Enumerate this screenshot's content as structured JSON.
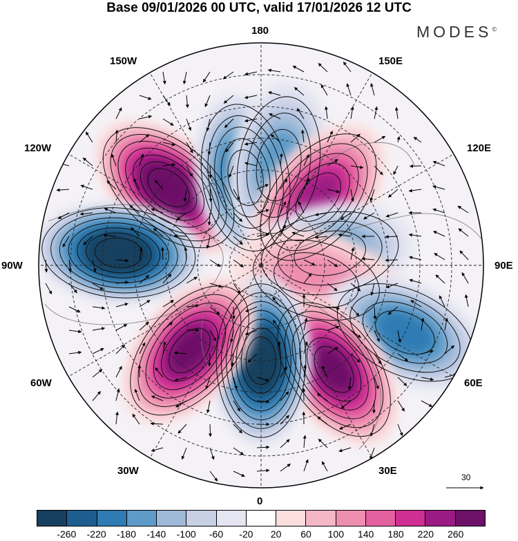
{
  "title": "Base 09/01/2026 00 UTC, valid 17/01/2026 12 UTC",
  "brand": "MODES",
  "brand_mark": "©",
  "longitude_labels": {
    "top": "180",
    "top_left": "150W",
    "top_right": "150E",
    "upper_left": "120W",
    "upper_right": "120E",
    "left": "90W",
    "right": "90E",
    "lower_left": "60W",
    "lower_right": "60E",
    "bottom_left": "30W",
    "bottom_right": "30E",
    "bottom": "0"
  },
  "vector_reference": "30",
  "colors": {
    "neg_260": "#173f5f",
    "neg_220": "#1d5e8f",
    "neg_180": "#2e7cb3",
    "neg_140": "#5f9bc8",
    "neg_100": "#9fb9d9",
    "neg_60": "#c8d0e6",
    "neg_20": "#e6e6f2",
    "zero": "#ffffff",
    "pos_20": "#fbdede",
    "pos_60": "#f4b7c6",
    "pos_100": "#ee8fb0",
    "pos_140": "#e461a0",
    "pos_180": "#cf2e93",
    "pos_220": "#9c1a83",
    "pos_260": "#6d1168"
  },
  "colorbar": {
    "swatches": [
      "#173f5f",
      "#1d5e8f",
      "#2e7cb3",
      "#5f9bc8",
      "#9fb9d9",
      "#c8d0e6",
      "#e6e6f2",
      "#ffffff",
      "#fbdede",
      "#f4b7c6",
      "#ee8fb0",
      "#e461a0",
      "#cf2e93",
      "#9c1a83",
      "#6d1168"
    ],
    "tick_labels": [
      "-260",
      "-220",
      "-180",
      "-140",
      "-100",
      "-60",
      "-20",
      "20",
      "60",
      "100",
      "140",
      "180",
      "220",
      "260"
    ]
  },
  "anomaly_features": [
    {
      "name": "north-pacific-ridge",
      "sign": "positive",
      "peak": 260,
      "lon": -130,
      "colat": 38
    },
    {
      "name": "canada-trough",
      "sign": "negative",
      "peak": -260,
      "lon": -95,
      "colat": 45
    },
    {
      "name": "alaska-trough",
      "sign": "negative",
      "peak": -180,
      "lon": -170,
      "colat": 28
    },
    {
      "name": "bering-trough",
      "sign": "negative",
      "peak": -100,
      "lon": 170,
      "colat": 32
    },
    {
      "name": "siberia-ridge",
      "sign": "positive",
      "peak": 180,
      "lon": 140,
      "colat": 28
    },
    {
      "name": "central-asia-trough",
      "sign": "negative",
      "peak": -100,
      "lon": 100,
      "colat": 22
    },
    {
      "name": "central-asia-ridge",
      "sign": "positive",
      "peak": 60,
      "lon": 75,
      "colat": 18
    },
    {
      "name": "east-asia-trough",
      "sign": "negative",
      "peak": -140,
      "lon": 65,
      "colat": 50
    },
    {
      "name": "europe-ridge",
      "sign": "positive",
      "peak": 220,
      "lon": 35,
      "colat": 40
    },
    {
      "name": "atlantic-trough",
      "sign": "negative",
      "peak": -260,
      "lon": 0,
      "colat": 30
    },
    {
      "name": "atlantic-ridge",
      "sign": "positive",
      "peak": 220,
      "lon": -40,
      "colat": 35
    }
  ]
}
